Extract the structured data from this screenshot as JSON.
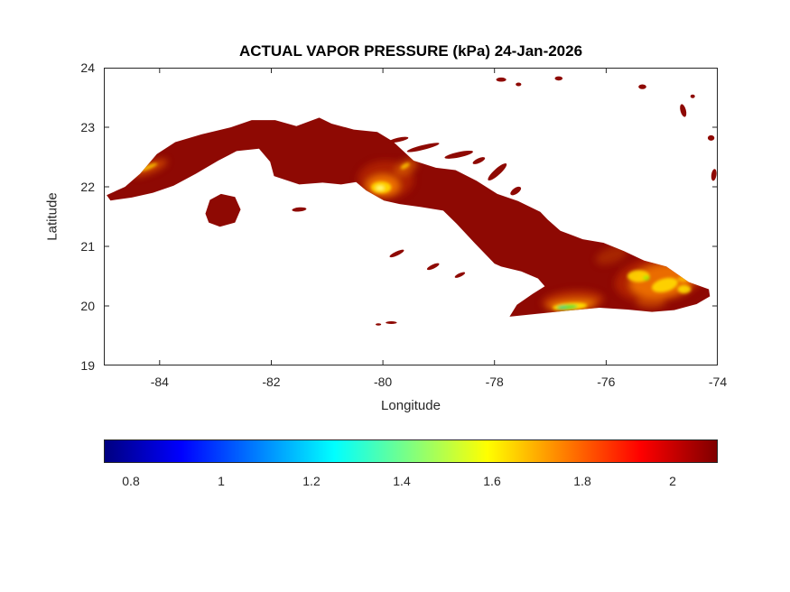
{
  "figure": {
    "background": "#ffffff"
  },
  "chart_data": {
    "type": "heatmap",
    "title": "ACTUAL VAPOR PRESSURE (kPa) 24-Jan-2026",
    "xlabel": "Longitude",
    "ylabel": "Latitude",
    "xlim": [
      -85,
      -74
    ],
    "ylim": [
      19,
      24
    ],
    "xticks": [
      -84,
      -82,
      -80,
      -78,
      -76,
      -74
    ],
    "yticks": [
      19,
      20,
      21,
      22,
      23,
      24
    ],
    "grid": false,
    "region": "Cuba and nearby islands",
    "sea_color": "#ffffff",
    "land_base_color": "#8e0903",
    "land_base_value_kPa": 2.05,
    "colorbar": {
      "orientation": "horizontal",
      "colormap": "jet",
      "min": 0.74,
      "max": 2.1,
      "ticks": [
        0.8,
        1,
        1.2,
        1.4,
        1.6,
        1.8,
        2
      ],
      "gradient_stops": [
        {
          "pos": 0,
          "color": "#000080"
        },
        {
          "pos": 0.125,
          "color": "#0000ff"
        },
        {
          "pos": 0.375,
          "color": "#00ffff"
        },
        {
          "pos": 0.625,
          "color": "#ffff00"
        },
        {
          "pos": 0.875,
          "color": "#ff0000"
        },
        {
          "pos": 1,
          "color": "#800000"
        }
      ]
    },
    "map": {
      "cuba_outline": [
        [
          -84.95,
          21.86
        ],
        [
          -84.62,
          22.0
        ],
        [
          -84.35,
          22.22
        ],
        [
          -84.05,
          22.55
        ],
        [
          -83.72,
          22.75
        ],
        [
          -83.25,
          22.88
        ],
        [
          -82.72,
          23.0
        ],
        [
          -82.35,
          23.12
        ],
        [
          -81.93,
          23.12
        ],
        [
          -81.55,
          23.02
        ],
        [
          -81.14,
          23.16
        ],
        [
          -80.92,
          23.06
        ],
        [
          -80.52,
          22.96
        ],
        [
          -80.1,
          22.92
        ],
        [
          -79.82,
          22.76
        ],
        [
          -79.45,
          22.44
        ],
        [
          -79.05,
          22.32
        ],
        [
          -78.7,
          22.28
        ],
        [
          -78.32,
          22.1
        ],
        [
          -77.95,
          21.88
        ],
        [
          -77.58,
          21.76
        ],
        [
          -77.18,
          21.58
        ],
        [
          -77.05,
          21.45
        ],
        [
          -76.82,
          21.26
        ],
        [
          -76.42,
          21.12
        ],
        [
          -76.05,
          21.06
        ],
        [
          -75.68,
          20.92
        ],
        [
          -75.32,
          20.76
        ],
        [
          -74.92,
          20.66
        ],
        [
          -74.52,
          20.4
        ],
        [
          -74.16,
          20.28
        ],
        [
          -74.14,
          20.16
        ],
        [
          -74.38,
          20.03
        ],
        [
          -74.78,
          19.93
        ],
        [
          -75.18,
          19.9
        ],
        [
          -75.62,
          19.94
        ],
        [
          -76.12,
          19.97
        ],
        [
          -76.68,
          19.92
        ],
        [
          -77.22,
          19.87
        ],
        [
          -77.73,
          19.82
        ],
        [
          -77.6,
          20.02
        ],
        [
          -77.32,
          20.2
        ],
        [
          -77.1,
          20.33
        ],
        [
          -77.22,
          20.46
        ],
        [
          -77.52,
          20.58
        ],
        [
          -77.88,
          20.66
        ],
        [
          -78.0,
          20.71
        ],
        [
          -78.35,
          21.05
        ],
        [
          -78.68,
          21.38
        ],
        [
          -78.92,
          21.6
        ],
        [
          -79.32,
          21.66
        ],
        [
          -79.7,
          21.71
        ],
        [
          -79.98,
          21.77
        ],
        [
          -80.3,
          21.94
        ],
        [
          -80.48,
          22.08
        ],
        [
          -80.75,
          22.04
        ],
        [
          -81.08,
          22.07
        ],
        [
          -81.5,
          22.04
        ],
        [
          -81.95,
          22.18
        ],
        [
          -82.02,
          22.42
        ],
        [
          -82.22,
          22.64
        ],
        [
          -82.62,
          22.6
        ],
        [
          -82.95,
          22.44
        ],
        [
          -83.35,
          22.22
        ],
        [
          -83.75,
          22.02
        ],
        [
          -84.12,
          21.9
        ],
        [
          -84.5,
          21.82
        ],
        [
          -84.88,
          21.77
        ]
      ],
      "isla_de_la_juventud": [
        [
          -83.18,
          21.55
        ],
        [
          -83.1,
          21.78
        ],
        [
          -82.9,
          21.88
        ],
        [
          -82.65,
          21.83
        ],
        [
          -82.55,
          21.62
        ],
        [
          -82.65,
          21.4
        ],
        [
          -82.92,
          21.33
        ],
        [
          -83.12,
          21.4
        ]
      ],
      "cays": [
        {
          "lon": -79.72,
          "lat": 22.79,
          "rx": 0.18,
          "ry": 0.035,
          "rot": -12
        },
        {
          "lon": -79.28,
          "lat": 22.66,
          "rx": 0.3,
          "ry": 0.04,
          "rot": -14
        },
        {
          "lon": -78.64,
          "lat": 22.54,
          "rx": 0.26,
          "ry": 0.045,
          "rot": -12
        },
        {
          "lon": -78.28,
          "lat": 22.44,
          "rx": 0.12,
          "ry": 0.04,
          "rot": -25
        },
        {
          "lon": -77.95,
          "lat": 22.25,
          "rx": 0.22,
          "ry": 0.055,
          "rot": -42
        },
        {
          "lon": -77.62,
          "lat": 21.93,
          "rx": 0.11,
          "ry": 0.05,
          "rot": -35
        },
        {
          "lon": -77.88,
          "lat": 23.8,
          "rx": 0.09,
          "ry": 0.035,
          "rot": 0
        },
        {
          "lon": -77.57,
          "lat": 23.72,
          "rx": 0.05,
          "ry": 0.03,
          "rot": 0
        },
        {
          "lon": -76.85,
          "lat": 23.82,
          "rx": 0.07,
          "ry": 0.035,
          "rot": 0
        },
        {
          "lon": -75.35,
          "lat": 23.68,
          "rx": 0.07,
          "ry": 0.04,
          "rot": 0
        },
        {
          "lon": -74.62,
          "lat": 23.28,
          "rx": 0.05,
          "ry": 0.11,
          "rot": -15
        },
        {
          "lon": -74.45,
          "lat": 23.52,
          "rx": 0.04,
          "ry": 0.03,
          "rot": 0
        },
        {
          "lon": -74.12,
          "lat": 22.82,
          "rx": 0.06,
          "ry": 0.045,
          "rot": 0
        },
        {
          "lon": -74.07,
          "lat": 22.2,
          "rx": 0.045,
          "ry": 0.1,
          "rot": 8
        },
        {
          "lon": -81.5,
          "lat": 21.62,
          "rx": 0.13,
          "ry": 0.035,
          "rot": -5
        },
        {
          "lon": -79.75,
          "lat": 20.88,
          "rx": 0.14,
          "ry": 0.035,
          "rot": -25
        },
        {
          "lon": -79.1,
          "lat": 20.66,
          "rx": 0.12,
          "ry": 0.035,
          "rot": -25
        },
        {
          "lon": -78.62,
          "lat": 20.52,
          "rx": 0.1,
          "ry": 0.03,
          "rot": -25
        },
        {
          "lon": -79.85,
          "lat": 19.72,
          "rx": 0.1,
          "ry": 0.022,
          "rot": 0
        },
        {
          "lon": -80.08,
          "lat": 19.69,
          "rx": 0.05,
          "ry": 0.02,
          "rot": 0
        }
      ]
    },
    "hotspots": [
      {
        "name": "organos-halo",
        "lon": -84.18,
        "lat": 22.32,
        "rx": 0.34,
        "ry": 0.09,
        "rot": -22,
        "color": "#d85200",
        "opacity": 0.8,
        "layer": 1,
        "value_kPa": 1.8
      },
      {
        "name": "organos-core",
        "lon": -84.2,
        "lat": 22.33,
        "rx": 0.17,
        "ry": 0.035,
        "rot": -22,
        "color": "#ffce00",
        "opacity": 0.85,
        "layer": 2,
        "value_kPa": 1.62
      },
      {
        "name": "escambray-halo",
        "lon": -79.95,
        "lat": 22.12,
        "rx": 0.5,
        "ry": 0.32,
        "rot": 0,
        "color": "#bb2a00",
        "opacity": 0.7,
        "layer": 1,
        "value_kPa": 1.9
      },
      {
        "name": "escambray-orange",
        "lon": -80.0,
        "lat": 22.02,
        "rx": 0.3,
        "ry": 0.18,
        "rot": 0,
        "color": "#f57a00",
        "opacity": 0.9,
        "layer": 1,
        "value_kPa": 1.74
      },
      {
        "name": "escambray-yellow",
        "lon": -80.03,
        "lat": 21.99,
        "rx": 0.18,
        "ry": 0.1,
        "rot": 0,
        "color": "#ffd800",
        "opacity": 0.95,
        "layer": 2,
        "value_kPa": 1.6
      },
      {
        "name": "escambray-core",
        "lon": -80.05,
        "lat": 21.98,
        "rx": 0.07,
        "ry": 0.04,
        "rot": 0,
        "color": "#ffff7a",
        "opacity": 0.9,
        "layer": 2,
        "value_kPa": 1.5
      },
      {
        "name": "escambray-ne-orange",
        "lon": -79.58,
        "lat": 22.33,
        "rx": 0.22,
        "ry": 0.11,
        "rot": -30,
        "color": "#e06800",
        "opacity": 0.65,
        "layer": 1,
        "value_kPa": 1.78
      },
      {
        "name": "escambray-ne-yellow",
        "lon": -79.6,
        "lat": 22.35,
        "rx": 0.09,
        "ry": 0.04,
        "rot": -30,
        "color": "#ffcc00",
        "opacity": 0.8,
        "layer": 2,
        "value_kPa": 1.62
      },
      {
        "name": "east-massif-halo",
        "lon": -75.05,
        "lat": 20.45,
        "rx": 0.8,
        "ry": 0.38,
        "rot": -8,
        "color": "#bb2a00",
        "opacity": 0.75,
        "layer": 1,
        "value_kPa": 1.9
      },
      {
        "name": "east-massif-orange",
        "lon": -75.0,
        "lat": 20.42,
        "rx": 0.58,
        "ry": 0.28,
        "rot": -8,
        "color": "#f57a00",
        "opacity": 0.85,
        "layer": 1,
        "value_kPa": 1.74
      },
      {
        "name": "east-massif-yellow-west",
        "lon": -75.42,
        "lat": 20.5,
        "rx": 0.2,
        "ry": 0.1,
        "rot": 0,
        "color": "#ffd800",
        "opacity": 0.9,
        "layer": 2,
        "value_kPa": 1.6
      },
      {
        "name": "east-massif-yellow-mid",
        "lon": -74.95,
        "lat": 20.35,
        "rx": 0.24,
        "ry": 0.11,
        "rot": -15,
        "color": "#ffdc00",
        "opacity": 0.9,
        "layer": 2,
        "value_kPa": 1.58
      },
      {
        "name": "east-massif-yellow-east",
        "lon": -74.6,
        "lat": 20.28,
        "rx": 0.12,
        "ry": 0.07,
        "rot": 0,
        "color": "#ffe400",
        "opacity": 0.85,
        "layer": 2,
        "value_kPa": 1.56
      },
      {
        "name": "east-massif-green-fleck",
        "lon": -75.28,
        "lat": 20.47,
        "rx": 0.06,
        "ry": 0.04,
        "rot": 0,
        "color": "#9cec00",
        "opacity": 0.85,
        "layer": 2,
        "value_kPa": 1.48
      },
      {
        "name": "baracoa-yellow",
        "lon": -74.62,
        "lat": 20.45,
        "rx": 0.1,
        "ry": 0.05,
        "rot": 0,
        "color": "#ffc800",
        "opacity": 0.7,
        "layer": 2,
        "value_kPa": 1.64
      },
      {
        "name": "sierra-maestra-halo",
        "lon": -76.6,
        "lat": 20.08,
        "rx": 0.55,
        "ry": 0.17,
        "rot": -4,
        "color": "#c83c00",
        "opacity": 0.8,
        "layer": 1,
        "value_kPa": 1.82
      },
      {
        "name": "sierra-maestra-orange",
        "lon": -76.62,
        "lat": 20.01,
        "rx": 0.43,
        "ry": 0.09,
        "rot": -4,
        "color": "#f58400",
        "opacity": 0.9,
        "layer": 1,
        "value_kPa": 1.72
      },
      {
        "name": "sierra-maestra-yellow",
        "lon": -76.65,
        "lat": 19.99,
        "rx": 0.31,
        "ry": 0.06,
        "rot": -4,
        "color": "#ffe000",
        "opacity": 0.95,
        "layer": 2,
        "value_kPa": 1.58
      },
      {
        "name": "sierra-maestra-green",
        "lon": -76.7,
        "lat": 19.98,
        "rx": 0.19,
        "ry": 0.04,
        "rot": -4,
        "color": "#55df3a",
        "opacity": 0.9,
        "layer": 2,
        "value_kPa": 1.4
      },
      {
        "name": "sierra-maestra-teal",
        "lon": -76.78,
        "lat": 19.98,
        "rx": 0.08,
        "ry": 0.025,
        "rot": 0,
        "color": "#2fd08c",
        "opacity": 0.75,
        "layer": 2,
        "value_kPa": 1.32
      },
      {
        "name": "holguin-mottle",
        "lon": -75.9,
        "lat": 20.85,
        "rx": 0.3,
        "ry": 0.13,
        "rot": -20,
        "color": "#c24000",
        "opacity": 0.5,
        "layer": 1,
        "value_kPa": 1.88
      },
      {
        "name": "guantanamo-orange",
        "lon": -75.2,
        "lat": 20.06,
        "rx": 0.26,
        "ry": 0.1,
        "rot": 0,
        "color": "#e06000",
        "opacity": 0.55,
        "layer": 1,
        "value_kPa": 1.8
      }
    ]
  }
}
